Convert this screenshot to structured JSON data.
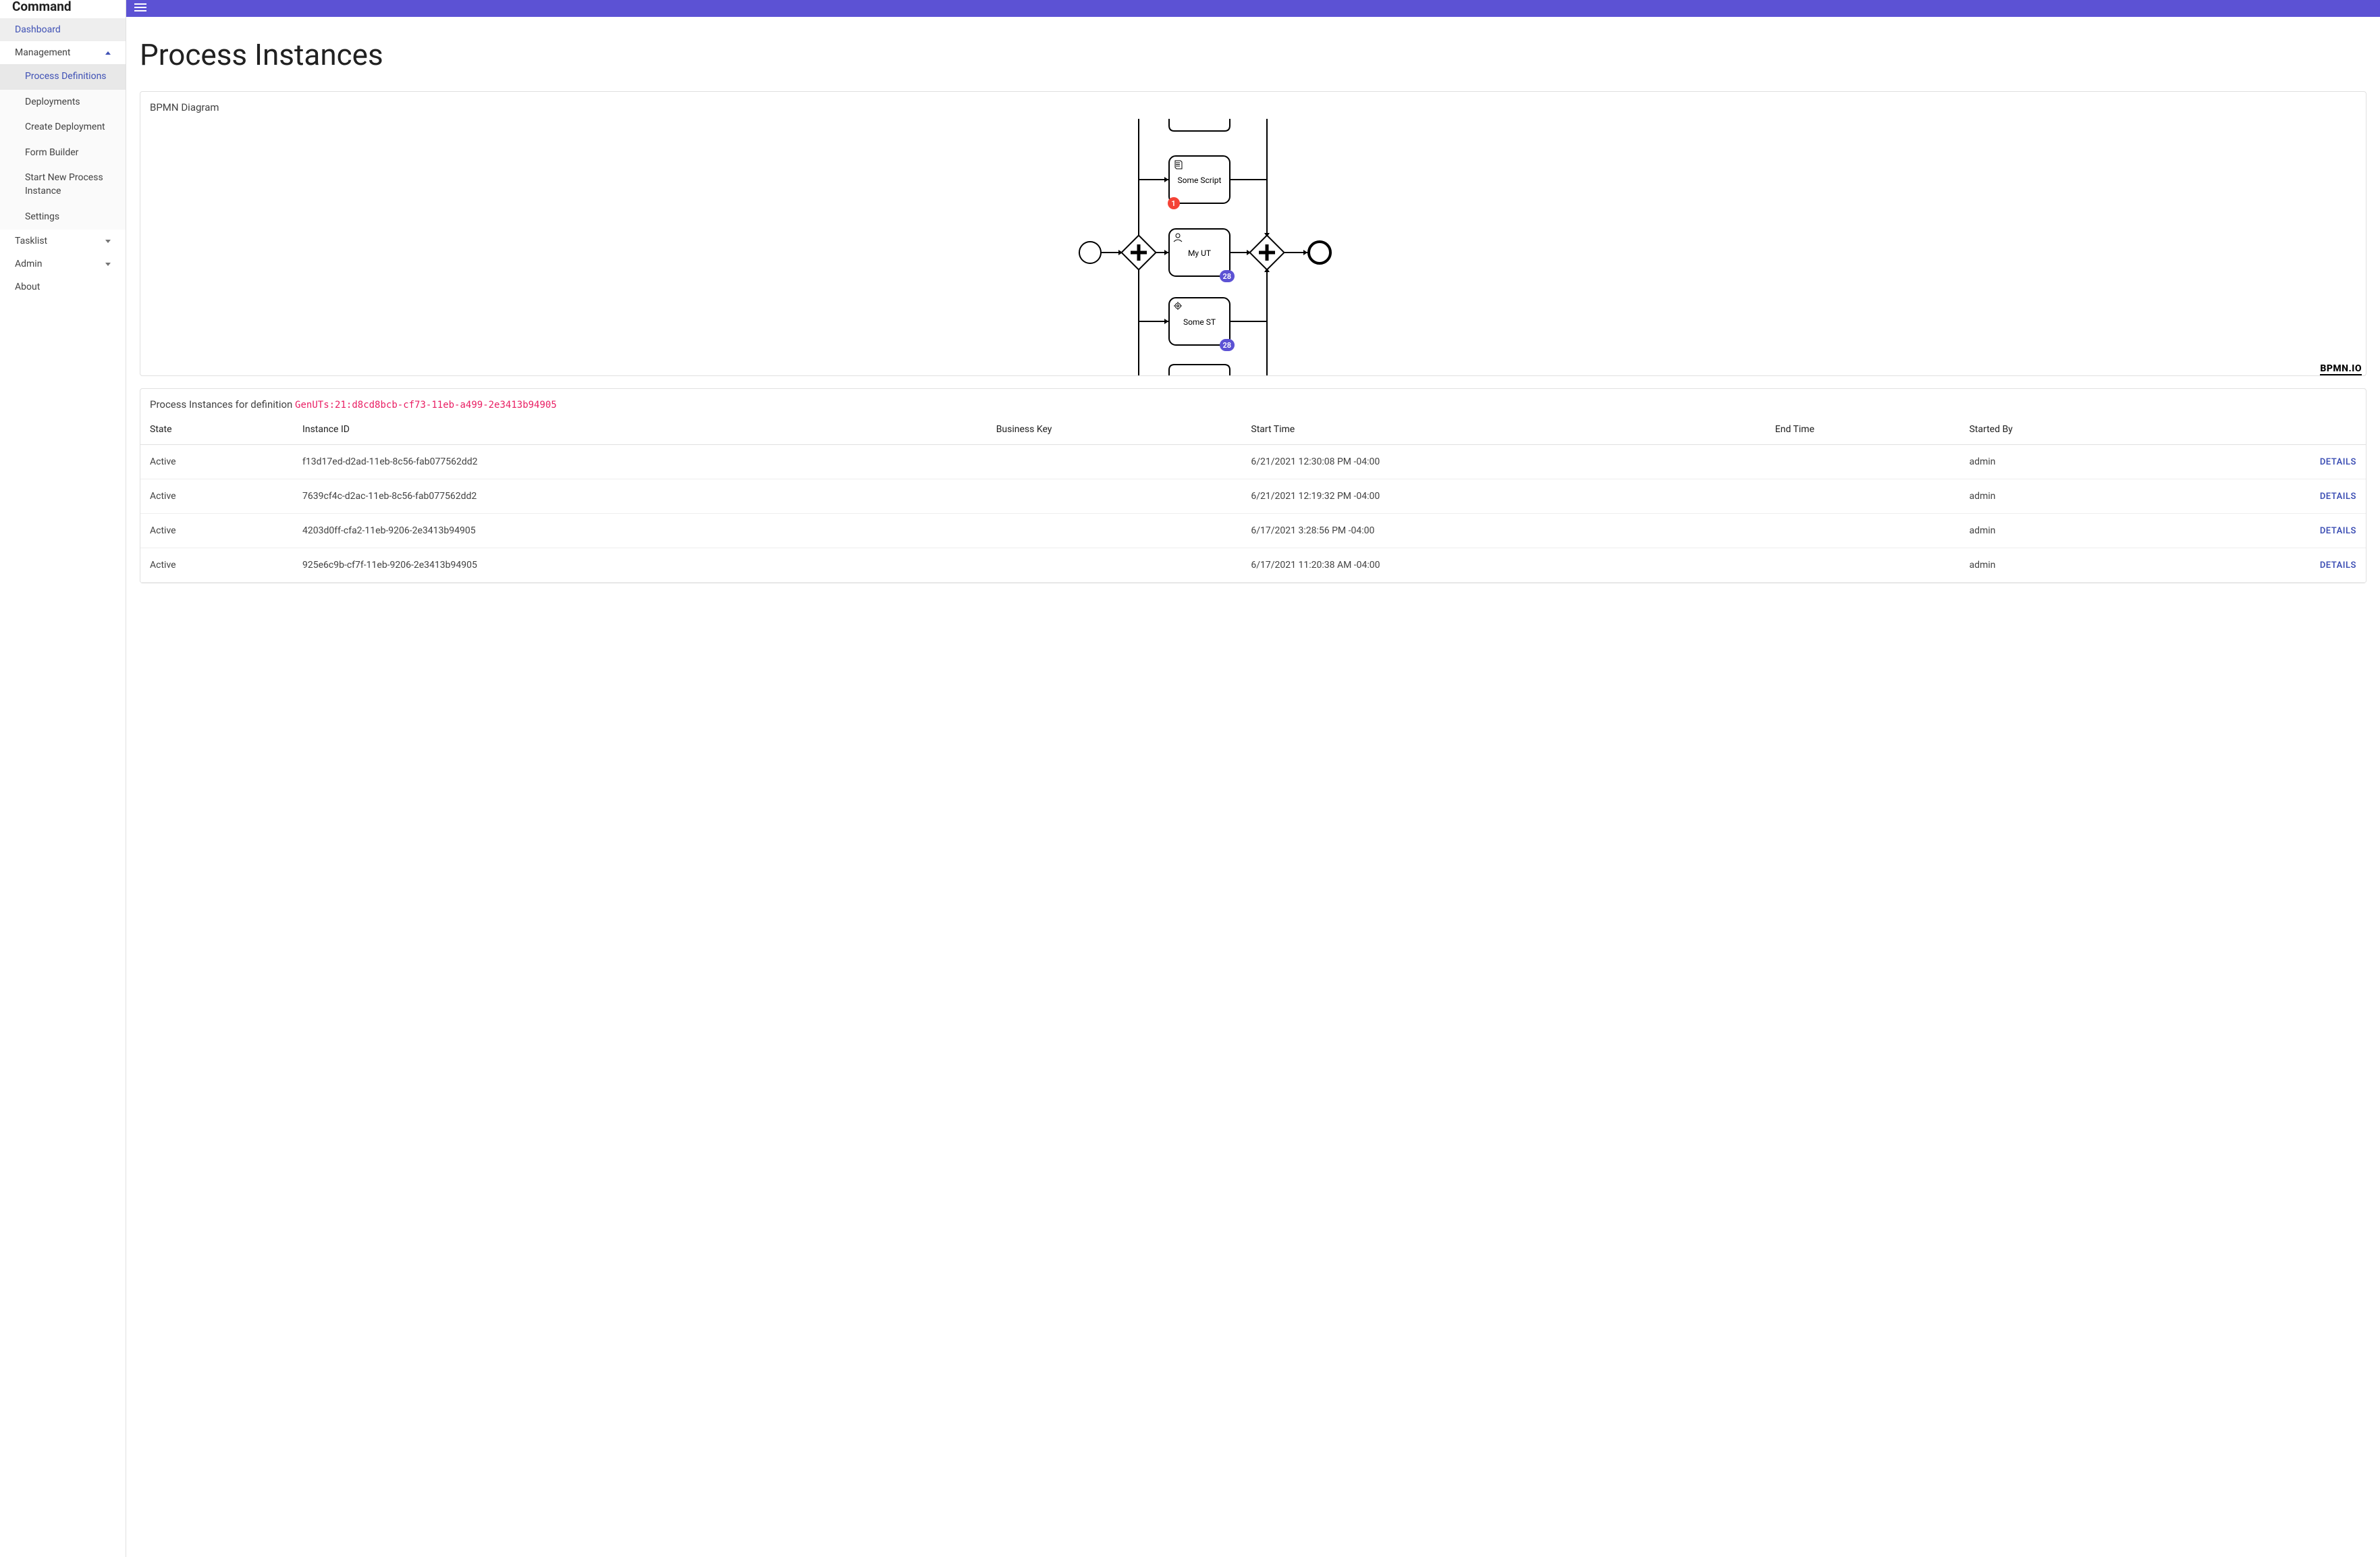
{
  "brand": "Command",
  "sidebar": {
    "items": [
      {
        "label": "Dashboard",
        "active": true
      },
      {
        "label": "Management",
        "expanded": true,
        "children": [
          {
            "label": "Process Definitions",
            "active": true
          },
          {
            "label": "Deployments"
          },
          {
            "label": "Create Deployment"
          },
          {
            "label": "Form Builder"
          },
          {
            "label": "Start New Process Instance"
          },
          {
            "label": "Settings"
          }
        ]
      },
      {
        "label": "Tasklist",
        "expandable": true
      },
      {
        "label": "Admin",
        "expandable": true
      },
      {
        "label": "About"
      }
    ]
  },
  "page": {
    "title": "Process Instances"
  },
  "diagram": {
    "title": "BPMN Diagram",
    "logo": "BPMN.IO",
    "tasks": [
      {
        "label": "Some Script",
        "badge": "1",
        "badge_color": "red",
        "badge_side": "left",
        "icon": "script"
      },
      {
        "label": "My UT",
        "badge": "28",
        "badge_color": "purple",
        "badge_side": "right",
        "icon": "user"
      },
      {
        "label": "Some ST",
        "badge": "28",
        "badge_color": "purple",
        "badge_side": "right",
        "icon": "service"
      }
    ],
    "colors": {
      "red": "#f44336",
      "purple": "#5c52d4",
      "stroke": "#000000"
    }
  },
  "instances": {
    "header_prefix": "Process Instances for definition ",
    "definition_id": "GenUTs:21:d8cd8bcb-cf73-11eb-a499-2e3413b94905",
    "columns": [
      "State",
      "Instance ID",
      "Business Key",
      "Start Time",
      "End Time",
      "Started By",
      ""
    ],
    "details_label": "DETAILS",
    "rows": [
      {
        "state": "Active",
        "instance_id": "f13d17ed-d2ad-11eb-8c56-fab077562dd2",
        "business_key": "",
        "start_time": "6/21/2021 12:30:08 PM -04:00",
        "end_time": "",
        "started_by": "admin"
      },
      {
        "state": "Active",
        "instance_id": "7639cf4c-d2ac-11eb-8c56-fab077562dd2",
        "business_key": "",
        "start_time": "6/21/2021 12:19:32 PM -04:00",
        "end_time": "",
        "started_by": "admin"
      },
      {
        "state": "Active",
        "instance_id": "4203d0ff-cfa2-11eb-9206-2e3413b94905",
        "business_key": "",
        "start_time": "6/17/2021 3:28:56 PM -04:00",
        "end_time": "",
        "started_by": "admin"
      },
      {
        "state": "Active",
        "instance_id": "925e6c9b-cf7f-11eb-9206-2e3413b94905",
        "business_key": "",
        "start_time": "6/17/2021 11:20:38 AM -04:00",
        "end_time": "",
        "started_by": "admin"
      }
    ]
  }
}
